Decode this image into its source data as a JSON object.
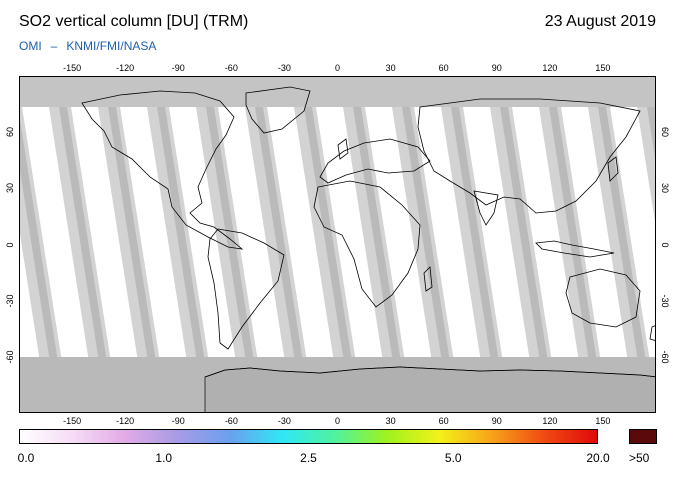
{
  "header": {
    "title": "SO2 vertical column [DU] (TRM)",
    "date": "23 August 2019",
    "credit_instrument": "OMI",
    "credit_dash": "–",
    "credit_agencies": "KNMI/FMI/NASA"
  },
  "map": {
    "lon_ticks": [
      "-150",
      "-120",
      "-90",
      "-60",
      "-30",
      "0",
      "30",
      "60",
      "90",
      "120",
      "150"
    ],
    "lat_ticks": [
      "60",
      "30",
      "0",
      "-30",
      "-60"
    ],
    "colors": {
      "ocean_data": "#ffffff",
      "swath_gap_light": "#d3d3d3",
      "swath_gap_dark": "#a6a6a6",
      "polar_no_data": "#bdbdbd",
      "coastline": "#000000"
    }
  },
  "colorbar": {
    "labels": [
      "0.0",
      "1.0",
      "2.5",
      "5.0",
      "20.0"
    ],
    "overflow_label": ">50",
    "overflow_color": "#5a0a0a",
    "gradient": [
      "#ffffff",
      "#f6dcf6",
      "#e2aae6",
      "#a79ce6",
      "#6aa0ee",
      "#2fe8f5",
      "#4ff2a0",
      "#9ef21e",
      "#f2f21a",
      "#f7a21a",
      "#f04a12",
      "#e00a0a"
    ]
  }
}
